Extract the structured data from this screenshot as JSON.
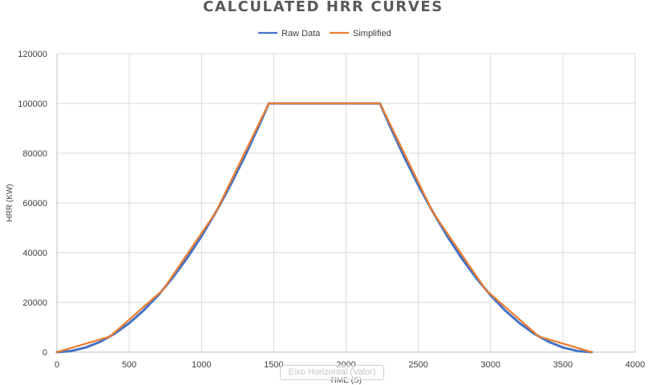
{
  "chart_data": {
    "type": "line",
    "title": "CALCULATED HRR CURVES",
    "xlabel": "TIME (S)",
    "ylabel": "HRR (KW)",
    "xlim": [
      0,
      4000
    ],
    "ylim": [
      0,
      120000
    ],
    "x_ticks": [
      0,
      500,
      1000,
      1500,
      2000,
      2500,
      3000,
      3500,
      4000
    ],
    "y_ticks": [
      0,
      20000,
      40000,
      60000,
      80000,
      100000,
      120000
    ],
    "grid": true,
    "legend_position": "top",
    "series": [
      {
        "name": "Raw Data",
        "color": "#4472C4",
        "x": [
          0,
          100,
          200,
          300,
          400,
          500,
          600,
          700,
          800,
          900,
          1000,
          1100,
          1200,
          1300,
          1400,
          1465,
          2235,
          2300,
          2400,
          2500,
          2600,
          2700,
          2800,
          2900,
          3000,
          3100,
          3200,
          3300,
          3400,
          3500,
          3600,
          3700
        ],
        "y": [
          0,
          466,
          1864,
          4194,
          7456,
          11650,
          16776,
          22834,
          29824,
          37746,
          46600,
          56386,
          67104,
          78754,
          91336,
          100000,
          100000,
          91336,
          78754,
          67104,
          56386,
          46600,
          37746,
          29824,
          22834,
          16776,
          11650,
          7456,
          4194,
          1864,
          466,
          0
        ]
      },
      {
        "name": "Simplified",
        "color": "#ED7D31",
        "x": [
          0,
          366,
          733,
          1099,
          1465,
          2235,
          2601,
          2967,
          3334,
          3700
        ],
        "y": [
          0,
          6250,
          25000,
          56250,
          100000,
          100000,
          56250,
          25000,
          6250,
          0
        ]
      }
    ]
  },
  "overlay": {
    "text": "Eixo Horizontal (Valor)"
  }
}
